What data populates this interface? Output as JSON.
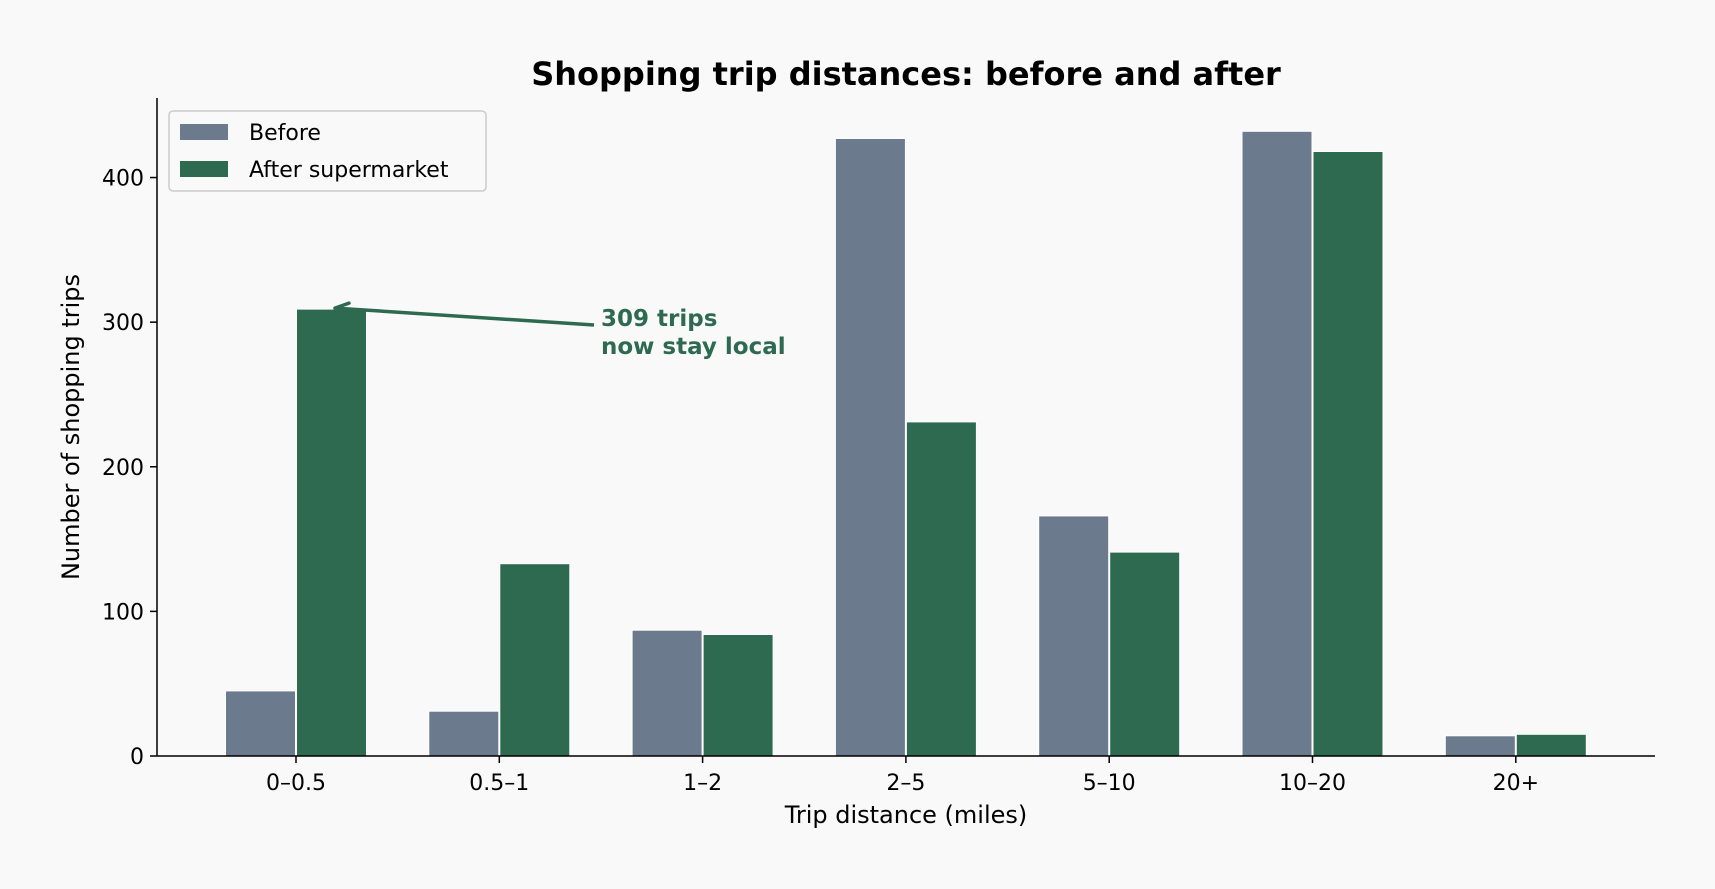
{
  "chart_data": {
    "type": "bar",
    "title": "Shopping trip distances: before and after",
    "xlabel": "Trip distance (miles)",
    "ylabel": "Number of shopping trips",
    "categories": [
      "0–0.5",
      "0.5–1",
      "1–2",
      "2–5",
      "5–10",
      "10–20",
      "20+"
    ],
    "series": [
      {
        "name": "Before",
        "color": "#6b7a8d",
        "values": [
          45,
          31,
          87,
          427,
          166,
          432,
          14
        ]
      },
      {
        "name": "After supermarket",
        "color": "#2e6a50",
        "values": [
          309,
          133,
          84,
          231,
          141,
          418,
          15
        ]
      }
    ],
    "ylim": [
      0,
      455
    ],
    "yticks": [
      0,
      100,
      200,
      300,
      400
    ],
    "grid": false,
    "legend_position": "top-left",
    "annotation": {
      "lines": [
        "309 trips",
        "now stay local"
      ],
      "color": "#2e6a50",
      "target_category": "0–0.5",
      "target_series": "After supermarket"
    }
  }
}
